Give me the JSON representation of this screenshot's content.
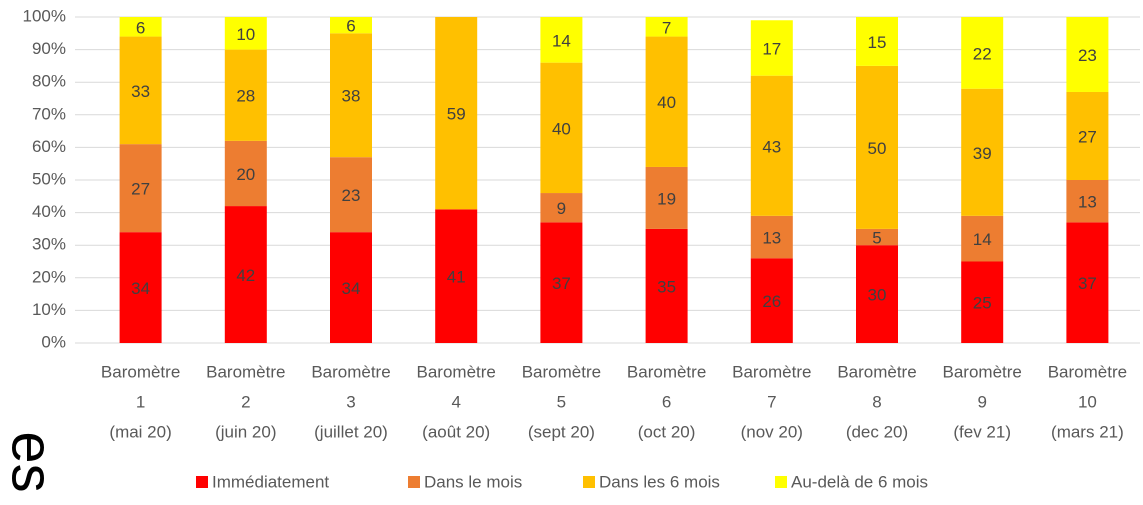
{
  "fragment": "es",
  "chart_data": {
    "type": "stacked_bar",
    "categories": [
      [
        "Baromètre",
        "1",
        "(mai 20)"
      ],
      [
        "Baromètre",
        "2",
        "(juin 20)"
      ],
      [
        "Baromètre",
        "3",
        "(juillet 20)"
      ],
      [
        "Baromètre",
        "4",
        "(août 20)"
      ],
      [
        "Baromètre",
        "5",
        "(sept 20)"
      ],
      [
        "Baromètre",
        "6",
        "(oct 20)"
      ],
      [
        "Baromètre",
        "7",
        "(nov 20)"
      ],
      [
        "Baromètre",
        "8",
        "(dec 20)"
      ],
      [
        "Baromètre",
        "9",
        "(fev 21)"
      ],
      [
        "Baromètre",
        "10",
        "(mars 21)"
      ]
    ],
    "series": [
      {
        "name": "Immédiatement",
        "color": "#ff0000",
        "values": [
          34,
          42,
          34,
          41,
          37,
          35,
          26,
          30,
          25,
          37
        ]
      },
      {
        "name": "Dans le mois",
        "color": "#ed7d31",
        "values": [
          27,
          20,
          23,
          null,
          9,
          19,
          13,
          5,
          14,
          13
        ]
      },
      {
        "name": "Dans les 6 mois",
        "color": "#ffc000",
        "values": [
          33,
          28,
          38,
          59,
          40,
          40,
          43,
          50,
          39,
          27
        ]
      },
      {
        "name": "Au-delà de 6 mois",
        "color": "#ffff00",
        "values": [
          6,
          10,
          6,
          null,
          14,
          7,
          17,
          15,
          22,
          23
        ]
      }
    ],
    "ylim": [
      0,
      100
    ],
    "yticks": [
      {
        "value": 0,
        "label": "0%"
      },
      {
        "value": 10,
        "label": "10%"
      },
      {
        "value": 20,
        "label": "20%"
      },
      {
        "value": 30,
        "label": "30%"
      },
      {
        "value": 40,
        "label": "40%"
      },
      {
        "value": 50,
        "label": "50%"
      },
      {
        "value": 60,
        "label": "60%"
      },
      {
        "value": 70,
        "label": "70%"
      },
      {
        "value": 80,
        "label": "80%"
      },
      {
        "value": 90,
        "label": "90%"
      },
      {
        "value": 100,
        "label": "100%"
      }
    ],
    "grid": true,
    "legend": "bottom"
  }
}
